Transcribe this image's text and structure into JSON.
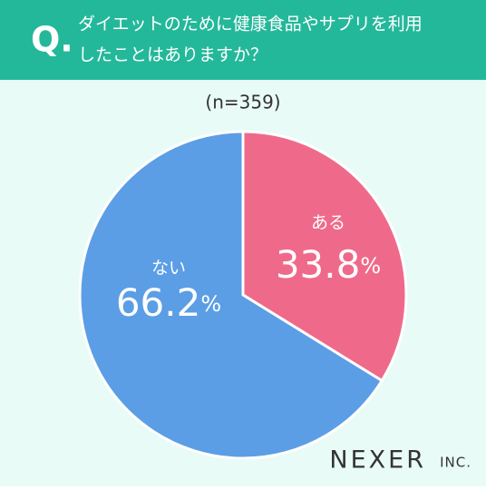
{
  "chart_data": {
    "type": "pie",
    "question_marker": "Q.",
    "title": [
      "ダイエットのために健康食品やサプリを利用",
      "したことはありますか？"
    ],
    "subtitle": "(n=359)",
    "categories": [
      "ある",
      "ない"
    ],
    "values": [
      33.8,
      66.2
    ],
    "value_labels": [
      "33.8%",
      "66.2%"
    ],
    "colors": [
      "#ef6a8a",
      "#5b9ee6"
    ],
    "logo": {
      "name": "NEXER",
      "suffix": "INC."
    }
  }
}
